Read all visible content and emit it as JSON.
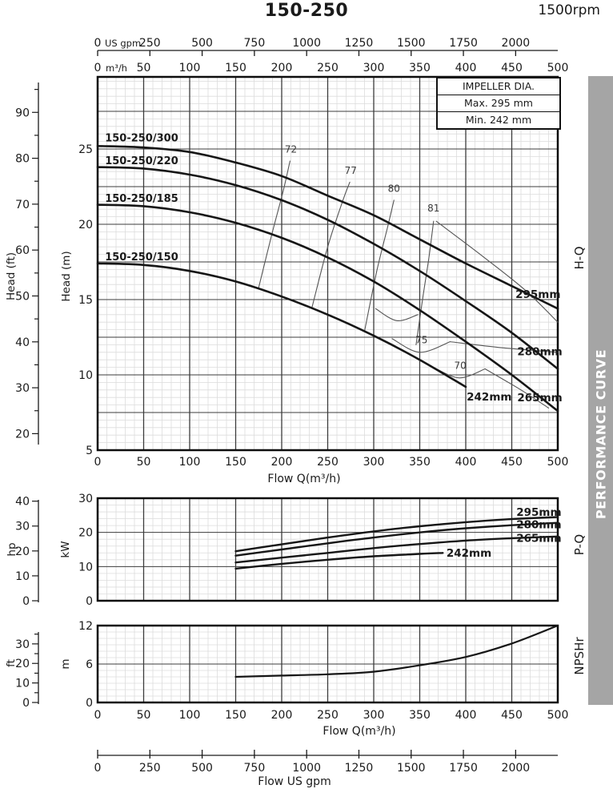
{
  "ui": {
    "title": "150-250",
    "speed": "1500rpm",
    "banner": "PERFORMANCE CURVE",
    "impeller_box": {
      "title": "IMPELLER DIA.",
      "max": "Max.  295 mm",
      "min": "Min.  242 mm"
    }
  },
  "axes": {
    "gpm": {
      "unit": "US gpm",
      "ticks": [
        0,
        250,
        500,
        750,
        1000,
        1250,
        1500,
        1750,
        2000
      ],
      "bottom_label": "Flow  US gpm"
    },
    "m3h": {
      "unit": "m³/h",
      "ticks": [
        0,
        50,
        100,
        150,
        200,
        250,
        300,
        350,
        400,
        450,
        500
      ],
      "flow_label": "Flow  Q(m³/h)"
    },
    "head_m": {
      "label": "Head (m)",
      "ticks": [
        5,
        10,
        15,
        20,
        25
      ]
    },
    "head_ft": {
      "label": "Head (ft)",
      "ticks": [
        20,
        30,
        40,
        50,
        60,
        70,
        80,
        90
      ]
    },
    "kw": {
      "label": "kW",
      "ticks": [
        0,
        10,
        20,
        30
      ]
    },
    "hp": {
      "label": "hp",
      "ticks": [
        0,
        10,
        20,
        30,
        40
      ]
    },
    "np_m": {
      "label": "m",
      "ticks": [
        0,
        6,
        12
      ]
    },
    "np_ft": {
      "label": "ft",
      "ticks": [
        0,
        10,
        20,
        30
      ]
    }
  },
  "chart_data": [
    {
      "id": "hq",
      "type": "line",
      "side_label": "H-Q",
      "xlabel": "Flow  Q(m³/h)",
      "x_range": [
        0,
        500
      ],
      "x_major": 50,
      "x_minor": 10,
      "ylabel_inner": "Head (m)",
      "ylabel_outer": "Head (ft)",
      "y_range": [
        5,
        30
      ],
      "y_major": 2.5,
      "y_minor": 0.5,
      "series": [
        {
          "name": "295mm",
          "model": "150-250/300",
          "points": [
            [
              0,
              25.2
            ],
            [
              50,
              25.1
            ],
            [
              100,
              24.8
            ],
            [
              150,
              24.1
            ],
            [
              200,
              23.2
            ],
            [
              250,
              21.9
            ],
            [
              300,
              20.6
            ],
            [
              350,
              19.0
            ],
            [
              400,
              17.4
            ],
            [
              450,
              15.9
            ],
            [
              500,
              14.4
            ]
          ]
        },
        {
          "name": "280mm",
          "model": "150-250/220",
          "points": [
            [
              0,
              23.8
            ],
            [
              50,
              23.7
            ],
            [
              100,
              23.3
            ],
            [
              150,
              22.6
            ],
            [
              200,
              21.6
            ],
            [
              250,
              20.3
            ],
            [
              300,
              18.7
            ],
            [
              350,
              16.9
            ],
            [
              400,
              14.9
            ],
            [
              450,
              12.8
            ],
            [
              500,
              10.4
            ]
          ]
        },
        {
          "name": "265mm",
          "model": "150-250/185",
          "points": [
            [
              0,
              21.3
            ],
            [
              50,
              21.2
            ],
            [
              100,
              20.8
            ],
            [
              150,
              20.1
            ],
            [
              200,
              19.1
            ],
            [
              250,
              17.8
            ],
            [
              300,
              16.2
            ],
            [
              350,
              14.3
            ],
            [
              400,
              12.2
            ],
            [
              450,
              10.0
            ],
            [
              500,
              7.6
            ]
          ]
        },
        {
          "name": "242mm",
          "model": "150-250/150",
          "points": [
            [
              0,
              17.4
            ],
            [
              50,
              17.3
            ],
            [
              100,
              16.9
            ],
            [
              150,
              16.2
            ],
            [
              200,
              15.2
            ],
            [
              250,
              14.0
            ],
            [
              300,
              12.6
            ],
            [
              350,
              11.0
            ],
            [
              400,
              9.2
            ]
          ]
        }
      ],
      "model_labels": [
        {
          "text": "150-250/300",
          "at": [
            8,
            25.5
          ]
        },
        {
          "text": "150-250/220",
          "at": [
            8,
            24.0
          ]
        },
        {
          "text": "150-250/185",
          "at": [
            8,
            21.5
          ]
        },
        {
          "text": "150-250/150",
          "at": [
            8,
            17.6
          ]
        }
      ],
      "diameter_labels": [
        {
          "text": "295mm",
          "at": [
            454,
            15.1
          ]
        },
        {
          "text": "280mm",
          "at": [
            456,
            11.3
          ]
        },
        {
          "text": "265mm",
          "at": [
            456,
            8.25
          ]
        },
        {
          "text": "242mm",
          "at": [
            401,
            8.3
          ]
        }
      ],
      "efficiency_labels": [
        {
          "text": "72",
          "at": [
            210,
            24.75
          ]
        },
        {
          "text": "77",
          "at": [
            275,
            23.35
          ]
        },
        {
          "text": "80",
          "at": [
            322,
            22.15
          ]
        },
        {
          "text": "81",
          "at": [
            365,
            20.85
          ]
        },
        {
          "text": "75",
          "at": [
            352,
            12.1
          ]
        },
        {
          "text": "70",
          "at": [
            394,
            10.4
          ]
        }
      ],
      "efficiency_contours": [
        {
          "label": "72",
          "points": [
            [
              175,
              15.8
            ],
            [
              190,
              19.5
            ],
            [
              202,
              22.3
            ],
            [
              209,
              24.2
            ]
          ]
        },
        {
          "label": "77",
          "points": [
            [
              233,
              14.5
            ],
            [
              250,
              18.5
            ],
            [
              266,
              21.5
            ],
            [
              274,
              22.8
            ]
          ]
        },
        {
          "label": "80",
          "points": [
            [
              290,
              12.9
            ],
            [
              303,
              16.8
            ],
            [
              315,
              19.8
            ],
            [
              322,
              21.6
            ]
          ]
        },
        {
          "label": "81",
          "points": [
            [
              346,
              12.0
            ],
            [
              353,
              15.0
            ],
            [
              360,
              17.8
            ],
            [
              365,
              20.2
            ]
          ]
        },
        {
          "label": "",
          "points": [
            [
              302,
              14.4
            ],
            [
              325,
              13.6
            ],
            [
              348,
              14.0
            ]
          ]
        },
        {
          "label": "75",
          "points": [
            [
              320,
              12.4
            ],
            [
              350,
              11.5
            ],
            [
              383,
              12.2
            ]
          ]
        },
        {
          "label": "70",
          "points": [
            [
              365,
              10.5
            ],
            [
              393,
              9.8
            ],
            [
              421,
              10.4
            ]
          ]
        },
        {
          "label": "",
          "points": [
            [
              368,
              20.2
            ],
            [
              420,
              17.8
            ],
            [
              465,
              15.6
            ],
            [
              500,
              13.5
            ]
          ]
        },
        {
          "label": "",
          "points": [
            [
              383,
              12.2
            ],
            [
              440,
              11.8
            ],
            [
              500,
              11.5
            ]
          ]
        },
        {
          "label": "",
          "points": [
            [
              421,
              10.4
            ],
            [
              460,
              9.0
            ],
            [
              490,
              7.8
            ]
          ]
        }
      ]
    },
    {
      "id": "pq",
      "type": "line",
      "side_label": "P-Q",
      "y_unit": "kW",
      "y_range": [
        0,
        30
      ],
      "y_major": 10,
      "y_minor": 2,
      "series": [
        {
          "name": "295mm",
          "points": [
            [
              150,
              14.5
            ],
            [
              200,
              16.5
            ],
            [
              250,
              18.5
            ],
            [
              300,
              20.3
            ],
            [
              350,
              21.8
            ],
            [
              400,
              23.0
            ],
            [
              450,
              23.9
            ],
            [
              500,
              24.5
            ]
          ]
        },
        {
          "name": "280mm",
          "points": [
            [
              150,
              13.2
            ],
            [
              200,
              15.0
            ],
            [
              250,
              16.8
            ],
            [
              300,
              18.5
            ],
            [
              350,
              20.0
            ],
            [
              400,
              21.2
            ],
            [
              450,
              22.1
            ],
            [
              500,
              22.8
            ]
          ]
        },
        {
          "name": "265mm",
          "points": [
            [
              150,
              11.2
            ],
            [
              200,
              12.6
            ],
            [
              250,
              14.0
            ],
            [
              300,
              15.4
            ],
            [
              350,
              16.6
            ],
            [
              400,
              17.6
            ],
            [
              450,
              18.3
            ],
            [
              500,
              18.8
            ]
          ]
        },
        {
          "name": "242mm",
          "points": [
            [
              150,
              9.4
            ],
            [
              200,
              10.8
            ],
            [
              250,
              12.0
            ],
            [
              300,
              13.0
            ],
            [
              350,
              13.7
            ],
            [
              375,
              14.0
            ]
          ]
        }
      ],
      "diameter_labels": [
        {
          "text": "295mm",
          "at": [
            455,
            24.9
          ]
        },
        {
          "text": "280mm",
          "at": [
            455,
            21.2
          ]
        },
        {
          "text": "265mm",
          "at": [
            455,
            17.2
          ]
        },
        {
          "text": "242mm",
          "at": [
            379,
            12.9
          ]
        }
      ]
    },
    {
      "id": "npshr",
      "type": "line",
      "side_label": "NPSHr",
      "xlabel": "Flow  Q(m³/h)",
      "y_unit": "m",
      "y_range": [
        0,
        12
      ],
      "y_major": 6,
      "y_minor": 1,
      "series": [
        {
          "name": "NPSHr",
          "points": [
            [
              150,
              4.0
            ],
            [
              200,
              4.2
            ],
            [
              250,
              4.4
            ],
            [
              300,
              4.8
            ],
            [
              350,
              5.8
            ],
            [
              400,
              7.1
            ],
            [
              450,
              9.2
            ],
            [
              500,
              12.0
            ]
          ]
        }
      ]
    }
  ]
}
